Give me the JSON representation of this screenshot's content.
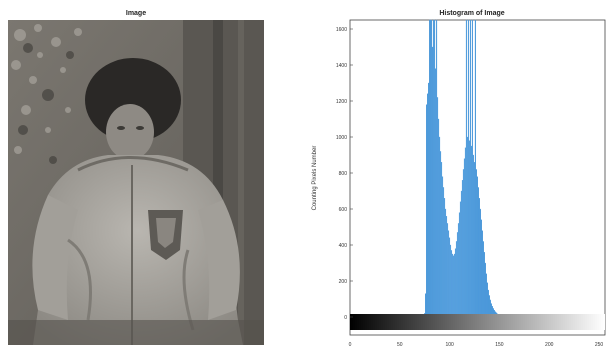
{
  "left_panel": {
    "title": "Image"
  },
  "right_panel": {
    "title": "Histogram of Image"
  },
  "chart_data": {
    "type": "bar",
    "title": "Histogram of Image",
    "xlabel": "",
    "ylabel": "Counting Pixels Number",
    "xlim": [
      0,
      256
    ],
    "ylim": [
      -100,
      1650
    ],
    "xticks": [
      0,
      50,
      100,
      150,
      200,
      250
    ],
    "yticks": [
      0,
      200,
      400,
      600,
      800,
      1000,
      1200,
      1400,
      1600
    ],
    "x": [
      75,
      76,
      77,
      78,
      79,
      80,
      81,
      82,
      83,
      84,
      85,
      86,
      87,
      88,
      89,
      90,
      91,
      92,
      93,
      94,
      95,
      96,
      97,
      98,
      99,
      100,
      101,
      102,
      103,
      104,
      105,
      106,
      107,
      108,
      109,
      110,
      111,
      112,
      113,
      114,
      115,
      116,
      117,
      118,
      119,
      120,
      121,
      122,
      123,
      124,
      125,
      126,
      127,
      128,
      129,
      130,
      131,
      132,
      133,
      134,
      135,
      136,
      137,
      138,
      139,
      140,
      141,
      142,
      143,
      144,
      145,
      146,
      147,
      148,
      149,
      150,
      151,
      152,
      153,
      154,
      155,
      156,
      157,
      158,
      159,
      160,
      161,
      162,
      163,
      164,
      165
    ],
    "values": [
      20,
      130,
      1180,
      1240,
      1300,
      1650,
      1650,
      1650,
      1500,
      1650,
      1650,
      1380,
      1650,
      1220,
      1100,
      1000,
      920,
      860,
      780,
      720,
      660,
      600,
      560,
      520,
      480,
      440,
      400,
      370,
      350,
      340,
      350,
      380,
      420,
      470,
      520,
      580,
      640,
      700,
      760,
      820,
      880,
      940,
      1650,
      1000,
      1650,
      980,
      1650,
      950,
      1650,
      900,
      860,
      1650,
      820,
      780,
      720,
      660,
      600,
      540,
      480,
      420,
      360,
      300,
      240,
      190,
      150,
      120,
      95,
      75,
      60,
      48,
      38,
      30,
      24,
      18,
      14,
      10,
      8,
      6,
      5,
      4,
      3,
      3,
      2,
      2,
      2,
      1,
      1,
      1,
      1,
      1,
      1
    ],
    "grid": false,
    "colorbar": {
      "range": [
        0,
        255
      ],
      "colors": [
        "#000000",
        "#ffffff"
      ]
    }
  }
}
